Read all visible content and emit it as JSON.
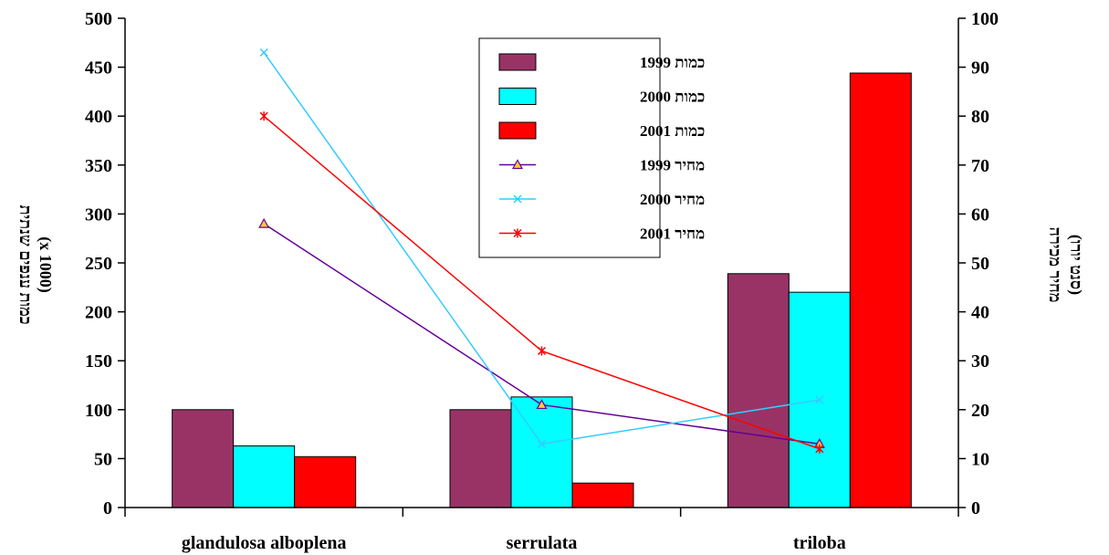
{
  "chart_data": {
    "type": "bar",
    "categories": [
      "glandulosa alboplena",
      "serrulata",
      "triloba"
    ],
    "ylabel": "כמות ענפים שנתית",
    "ylabel_unit": "(x 1000)",
    "ylim": [
      0,
      500
    ],
    "yticks": [
      "0",
      "50",
      "100",
      "150",
      "200",
      "250",
      "300",
      "350",
      "400",
      "450",
      "500"
    ],
    "y2label": "מחיר מכירה",
    "y2label_unit": "(סנט יורו)",
    "y2lim": [
      0,
      100
    ],
    "y2ticks": [
      "0",
      "10",
      "20",
      "30",
      "40",
      "50",
      "60",
      "70",
      "80",
      "90",
      "100"
    ],
    "legend_position": "top-center",
    "bar_series": [
      {
        "name": "כמות 1999",
        "values": [
          100,
          100,
          239
        ],
        "color": "#993366"
      },
      {
        "name": "כמות 2000",
        "values": [
          63,
          113,
          220
        ],
        "color": "#00ffff"
      },
      {
        "name": "כמות 2001",
        "values": [
          52,
          25,
          444
        ],
        "color": "#ff0000"
      }
    ],
    "line_series": [
      {
        "name": "מחיר 1999",
        "values": [
          58,
          21,
          13
        ],
        "color": "#660099",
        "marker": "triangle"
      },
      {
        "name": "מחיר 2000",
        "values": [
          93,
          13,
          22
        ],
        "color": "#33ccff",
        "marker": "x"
      },
      {
        "name": "מחיר 2001",
        "values": [
          80,
          32,
          12
        ],
        "color": "#ff0000",
        "marker": "star"
      }
    ]
  }
}
